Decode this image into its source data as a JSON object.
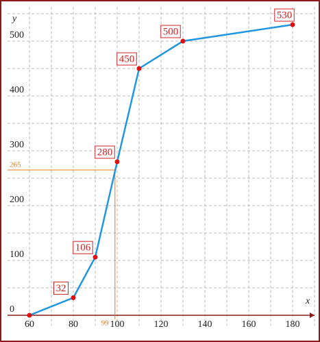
{
  "chart_data": {
    "type": "line",
    "x": [
      60,
      80,
      90,
      100,
      110,
      130,
      180
    ],
    "values": [
      0,
      32,
      106,
      280,
      450,
      500,
      530
    ],
    "color": "#2196e0",
    "marker_color": "#e01010",
    "xlim": [
      50,
      190
    ],
    "ylim": [
      -19,
      562
    ],
    "xticks": [
      60,
      80,
      100,
      120,
      140,
      160,
      180
    ],
    "yticks": [
      0,
      100,
      200,
      300,
      400,
      500
    ],
    "x_minor_ticks": [
      70,
      90,
      110,
      130,
      150,
      170,
      190
    ],
    "y_minor_ticks": [
      50,
      150,
      250,
      350,
      450,
      550
    ],
    "grid": true,
    "xlabel": "x",
    "ylabel": "y",
    "annotation": {
      "x": 99,
      "y": 265,
      "color": "#e07a20"
    }
  }
}
